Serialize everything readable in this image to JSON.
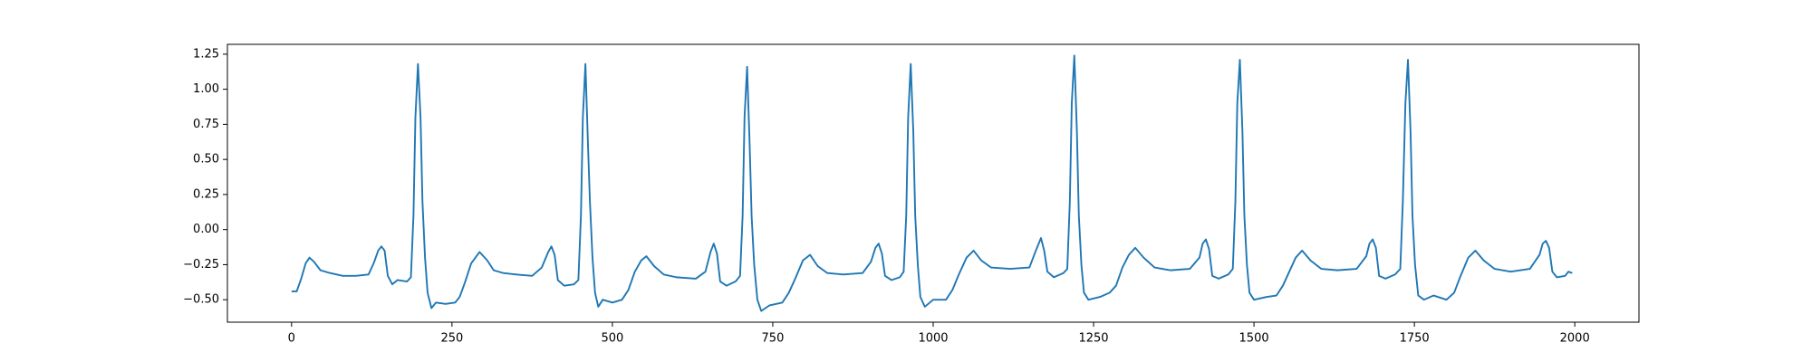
{
  "chart_data": {
    "type": "line",
    "color": "#1f77b4",
    "grid": false,
    "x": [
      0,
      8,
      15,
      22,
      28,
      35,
      45,
      60,
      80,
      100,
      120,
      128,
      135,
      140,
      145,
      150,
      157,
      165,
      180,
      186,
      190,
      193,
      197,
      201,
      204,
      208,
      212,
      218,
      225,
      240,
      255,
      262,
      270,
      280,
      293,
      305,
      315,
      330,
      350,
      375,
      390,
      400,
      405,
      410,
      415,
      425,
      440,
      447,
      451,
      454,
      458,
      462,
      465,
      469,
      473,
      478,
      485,
      500,
      515,
      525,
      535,
      545,
      553,
      565,
      580,
      600,
      630,
      645,
      653,
      658,
      663,
      668,
      678,
      692,
      699,
      703,
      706,
      710,
      714,
      717,
      721,
      726,
      732,
      745,
      765,
      775,
      785,
      797,
      808,
      820,
      835,
      860,
      890,
      903,
      910,
      915,
      920,
      925,
      935,
      948,
      954,
      958,
      961,
      965,
      969,
      972,
      976,
      980,
      987,
      1000,
      1020,
      1030,
      1040,
      1052,
      1063,
      1075,
      1090,
      1120,
      1150,
      1160,
      1168,
      1173,
      1178,
      1188,
      1203,
      1209,
      1213,
      1216,
      1220,
      1224,
      1227,
      1231,
      1235,
      1242,
      1260,
      1275,
      1285,
      1295,
      1305,
      1315,
      1328,
      1345,
      1370,
      1400,
      1415,
      1420,
      1425,
      1430,
      1435,
      1445,
      1460,
      1467,
      1471,
      1474,
      1478,
      1482,
      1485,
      1489,
      1493,
      1500,
      1520,
      1535,
      1545,
      1555,
      1565,
      1575,
      1588,
      1605,
      1630,
      1660,
      1675,
      1680,
      1685,
      1690,
      1695,
      1705,
      1720,
      1728,
      1732,
      1736,
      1740,
      1744,
      1747,
      1751,
      1756,
      1765,
      1780,
      1800,
      1812,
      1822,
      1834,
      1845,
      1858,
      1875,
      1900,
      1930,
      1945,
      1950,
      1955,
      1960,
      1965,
      1972,
      1985,
      1990,
      1996
    ],
    "values": [
      -0.44,
      -0.44,
      -0.35,
      -0.24,
      -0.2,
      -0.23,
      -0.29,
      -0.31,
      -0.33,
      -0.33,
      -0.32,
      -0.24,
      -0.15,
      -0.12,
      -0.15,
      -0.33,
      -0.39,
      -0.36,
      -0.37,
      -0.34,
      0.1,
      0.8,
      1.18,
      0.8,
      0.2,
      -0.2,
      -0.45,
      -0.56,
      -0.52,
      -0.53,
      -0.52,
      -0.48,
      -0.38,
      -0.24,
      -0.16,
      -0.22,
      -0.29,
      -0.31,
      -0.32,
      -0.33,
      -0.27,
      -0.16,
      -0.12,
      -0.18,
      -0.36,
      -0.4,
      -0.39,
      -0.36,
      0.1,
      0.8,
      1.18,
      0.6,
      0.2,
      -0.2,
      -0.45,
      -0.55,
      -0.5,
      -0.52,
      -0.5,
      -0.43,
      -0.3,
      -0.22,
      -0.19,
      -0.26,
      -0.32,
      -0.34,
      -0.35,
      -0.3,
      -0.16,
      -0.1,
      -0.17,
      -0.37,
      -0.4,
      -0.37,
      -0.33,
      0.1,
      0.8,
      1.16,
      0.6,
      0.1,
      -0.25,
      -0.5,
      -0.58,
      -0.54,
      -0.52,
      -0.45,
      -0.35,
      -0.22,
      -0.18,
      -0.26,
      -0.31,
      -0.32,
      -0.31,
      -0.23,
      -0.13,
      -0.1,
      -0.17,
      -0.33,
      -0.36,
      -0.34,
      -0.3,
      0.1,
      0.8,
      1.18,
      0.7,
      0.1,
      -0.25,
      -0.48,
      -0.55,
      -0.5,
      -0.5,
      -0.43,
      -0.32,
      -0.2,
      -0.15,
      -0.22,
      -0.27,
      -0.28,
      -0.27,
      -0.15,
      -0.06,
      -0.15,
      -0.3,
      -0.34,
      -0.31,
      -0.28,
      0.2,
      0.9,
      1.24,
      0.7,
      0.1,
      -0.25,
      -0.45,
      -0.5,
      -0.48,
      -0.45,
      -0.4,
      -0.27,
      -0.18,
      -0.13,
      -0.2,
      -0.27,
      -0.29,
      -0.28,
      -0.2,
      -0.1,
      -0.07,
      -0.14,
      -0.33,
      -0.35,
      -0.32,
      -0.28,
      0.2,
      0.9,
      1.21,
      0.7,
      0.1,
      -0.25,
      -0.45,
      -0.5,
      -0.48,
      -0.47,
      -0.4,
      -0.3,
      -0.2,
      -0.15,
      -0.22,
      -0.28,
      -0.29,
      -0.28,
      -0.19,
      -0.1,
      -0.07,
      -0.13,
      -0.33,
      -0.35,
      -0.32,
      -0.28,
      0.2,
      0.9,
      1.21,
      0.7,
      0.1,
      -0.25,
      -0.47,
      -0.5,
      -0.47,
      -0.5,
      -0.45,
      -0.33,
      -0.2,
      -0.15,
      -0.22,
      -0.28,
      -0.3,
      -0.28,
      -0.18,
      -0.1,
      -0.08,
      -0.13,
      -0.3,
      -0.34,
      -0.33,
      -0.3,
      -0.31
    ],
    "xlim": [
      -100,
      2100
    ],
    "xticks": [
      0,
      250,
      500,
      750,
      1000,
      1250,
      1500,
      1750,
      2000
    ],
    "ylim": [
      -0.66,
      1.32
    ],
    "yticks": [
      {
        "value": -0.5,
        "label": "−0.50"
      },
      {
        "value": -0.25,
        "label": "−0.25"
      },
      {
        "value": 0,
        "label": "0.00"
      },
      {
        "value": 0.25,
        "label": "0.25"
      },
      {
        "value": 0.5,
        "label": "0.50"
      },
      {
        "value": 0.75,
        "label": "0.75"
      },
      {
        "value": 1.0,
        "label": "1.00"
      },
      {
        "value": 1.25,
        "label": "1.25"
      }
    ]
  }
}
